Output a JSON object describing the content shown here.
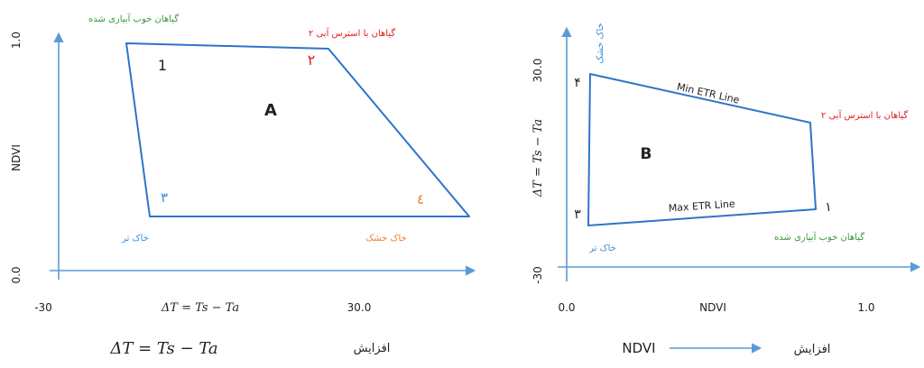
{
  "colors": {
    "axis": "#5b9bd5",
    "shape": "#2e75c8",
    "green": "#3a9b3a",
    "red": "#e02020",
    "blue": "#3b8fd8",
    "orange": "#ef7d31",
    "black": "#222222"
  },
  "diagram_a": {
    "letter": "A",
    "y_axis_label": "NDVI",
    "y_tick_top": "1.0",
    "y_tick_bottom": "0.0",
    "x_tick_left": "-30",
    "x_tick_right": "30.0",
    "x_axis_label": "ΔT = Ts − Ta",
    "corner_1_num": "1",
    "corner_2_num": "۲",
    "corner_3_num": "۳",
    "corner_4_num": "٤",
    "label_well_irrigated": "گیاهان خوب آبیاری شده",
    "label_water_stress": "گیاهان با استرس آبی ۲",
    "label_wet_soil": "خاک تر",
    "label_dry_soil": "خاک خشک"
  },
  "diagram_b": {
    "letter": "B",
    "y_axis_label": "ΔT = Ts − Ta",
    "y_tick_top": "30.0",
    "y_tick_bottom": "-30",
    "x_tick_left": "0.0",
    "x_tick_right": "1.0",
    "x_axis_label": "NDVI",
    "corner_4_num": "۴",
    "corner_3_num": "۳",
    "corner_1_num": "۱",
    "label_dry_soil": "خاک خشک",
    "label_wet_soil": "خاک تر",
    "label_water_stress": "گیاهان با استرس آبی ۲",
    "label_well_irrigated": "گیاهان خوب آبیاری شده",
    "min_etr_line": "Min ETR Line",
    "max_etr_line": "Max ETR Line"
  },
  "captions": {
    "left_formula": "ΔT = Ts − Ta",
    "left_increase": "افزایش",
    "right_ndvi": "NDVI",
    "right_increase": "افزایش"
  }
}
